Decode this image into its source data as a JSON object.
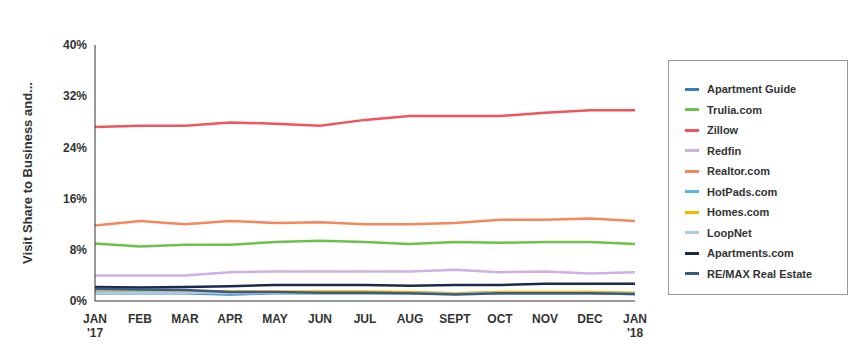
{
  "chart_data": {
    "type": "line",
    "y_label": "Visit Share to Business and...",
    "categories": [
      "JAN '17",
      "FEB",
      "MAR",
      "APR",
      "MAY",
      "JUN",
      "JUL",
      "AUG",
      "SEPT",
      "OCT",
      "NOV",
      "DEC",
      "JAN '18"
    ],
    "ylim": [
      0,
      40
    ],
    "yticks": [
      {
        "value": 0,
        "label": "0%"
      },
      {
        "value": 8,
        "label": "8%"
      },
      {
        "value": 16,
        "label": "16%"
      },
      {
        "value": 24,
        "label": "24%"
      },
      {
        "value": 32,
        "label": "32%"
      },
      {
        "value": 40,
        "label": "40%"
      }
    ],
    "grid": false,
    "legend": "right",
    "series": [
      {
        "name": "Apartment Guide",
        "color": "#3a7bbf",
        "values": [
          1.2,
          1.2,
          1.2,
          1.0,
          1.2,
          1.2,
          1.2,
          1.2,
          1.2,
          1.2,
          1.2,
          1.2,
          1.1
        ]
      },
      {
        "name": "Trulia.com",
        "color": "#6cc24a",
        "values": [
          9.0,
          8.5,
          8.8,
          8.8,
          9.2,
          9.4,
          9.2,
          8.9,
          9.2,
          9.1,
          9.2,
          9.2,
          8.9
        ]
      },
      {
        "name": "Zillow",
        "color": "#f0545e",
        "values": [
          27.2,
          27.4,
          27.4,
          27.9,
          27.7,
          27.4,
          28.3,
          28.9,
          28.9,
          28.9,
          29.4,
          29.8,
          29.8
        ]
      },
      {
        "name": "Redfin",
        "color": "#cfb0e3",
        "values": [
          4.0,
          4.0,
          4.0,
          4.5,
          4.6,
          4.6,
          4.6,
          4.6,
          4.9,
          4.5,
          4.6,
          4.3,
          4.5
        ]
      },
      {
        "name": "Realtor.com",
        "color": "#f5875a",
        "values": [
          11.8,
          12.5,
          12.0,
          12.5,
          12.2,
          12.3,
          12.0,
          12.0,
          12.2,
          12.7,
          12.7,
          12.9,
          12.5
        ]
      },
      {
        "name": "HotPads.com",
        "color": "#5bb8e0",
        "values": [
          1.5,
          1.4,
          1.4,
          1.3,
          1.3,
          1.3,
          1.3,
          1.3,
          1.2,
          1.3,
          1.3,
          1.3,
          1.2
        ]
      },
      {
        "name": "Homes.com",
        "color": "#f5b800",
        "values": [
          1.8,
          1.7,
          1.6,
          1.5,
          1.5,
          1.5,
          1.5,
          1.4,
          1.2,
          1.4,
          1.4,
          1.4,
          1.3
        ]
      },
      {
        "name": "LoopNet",
        "color": "#a9cce3",
        "values": [
          1.3,
          1.3,
          1.3,
          1.2,
          1.2,
          1.2,
          1.2,
          1.2,
          1.1,
          1.2,
          1.2,
          1.2,
          1.1
        ]
      },
      {
        "name": "Apartments.com",
        "color": "#1b2a4a",
        "values": [
          2.2,
          2.1,
          2.2,
          2.3,
          2.5,
          2.5,
          2.5,
          2.4,
          2.5,
          2.5,
          2.7,
          2.7,
          2.7
        ]
      },
      {
        "name": "RE/MAX Real Estate",
        "color": "#3d5a80",
        "values": [
          1.9,
          1.8,
          1.7,
          1.4,
          1.4,
          1.3,
          1.3,
          1.2,
          1.0,
          1.2,
          1.2,
          1.2,
          1.1
        ]
      }
    ]
  }
}
